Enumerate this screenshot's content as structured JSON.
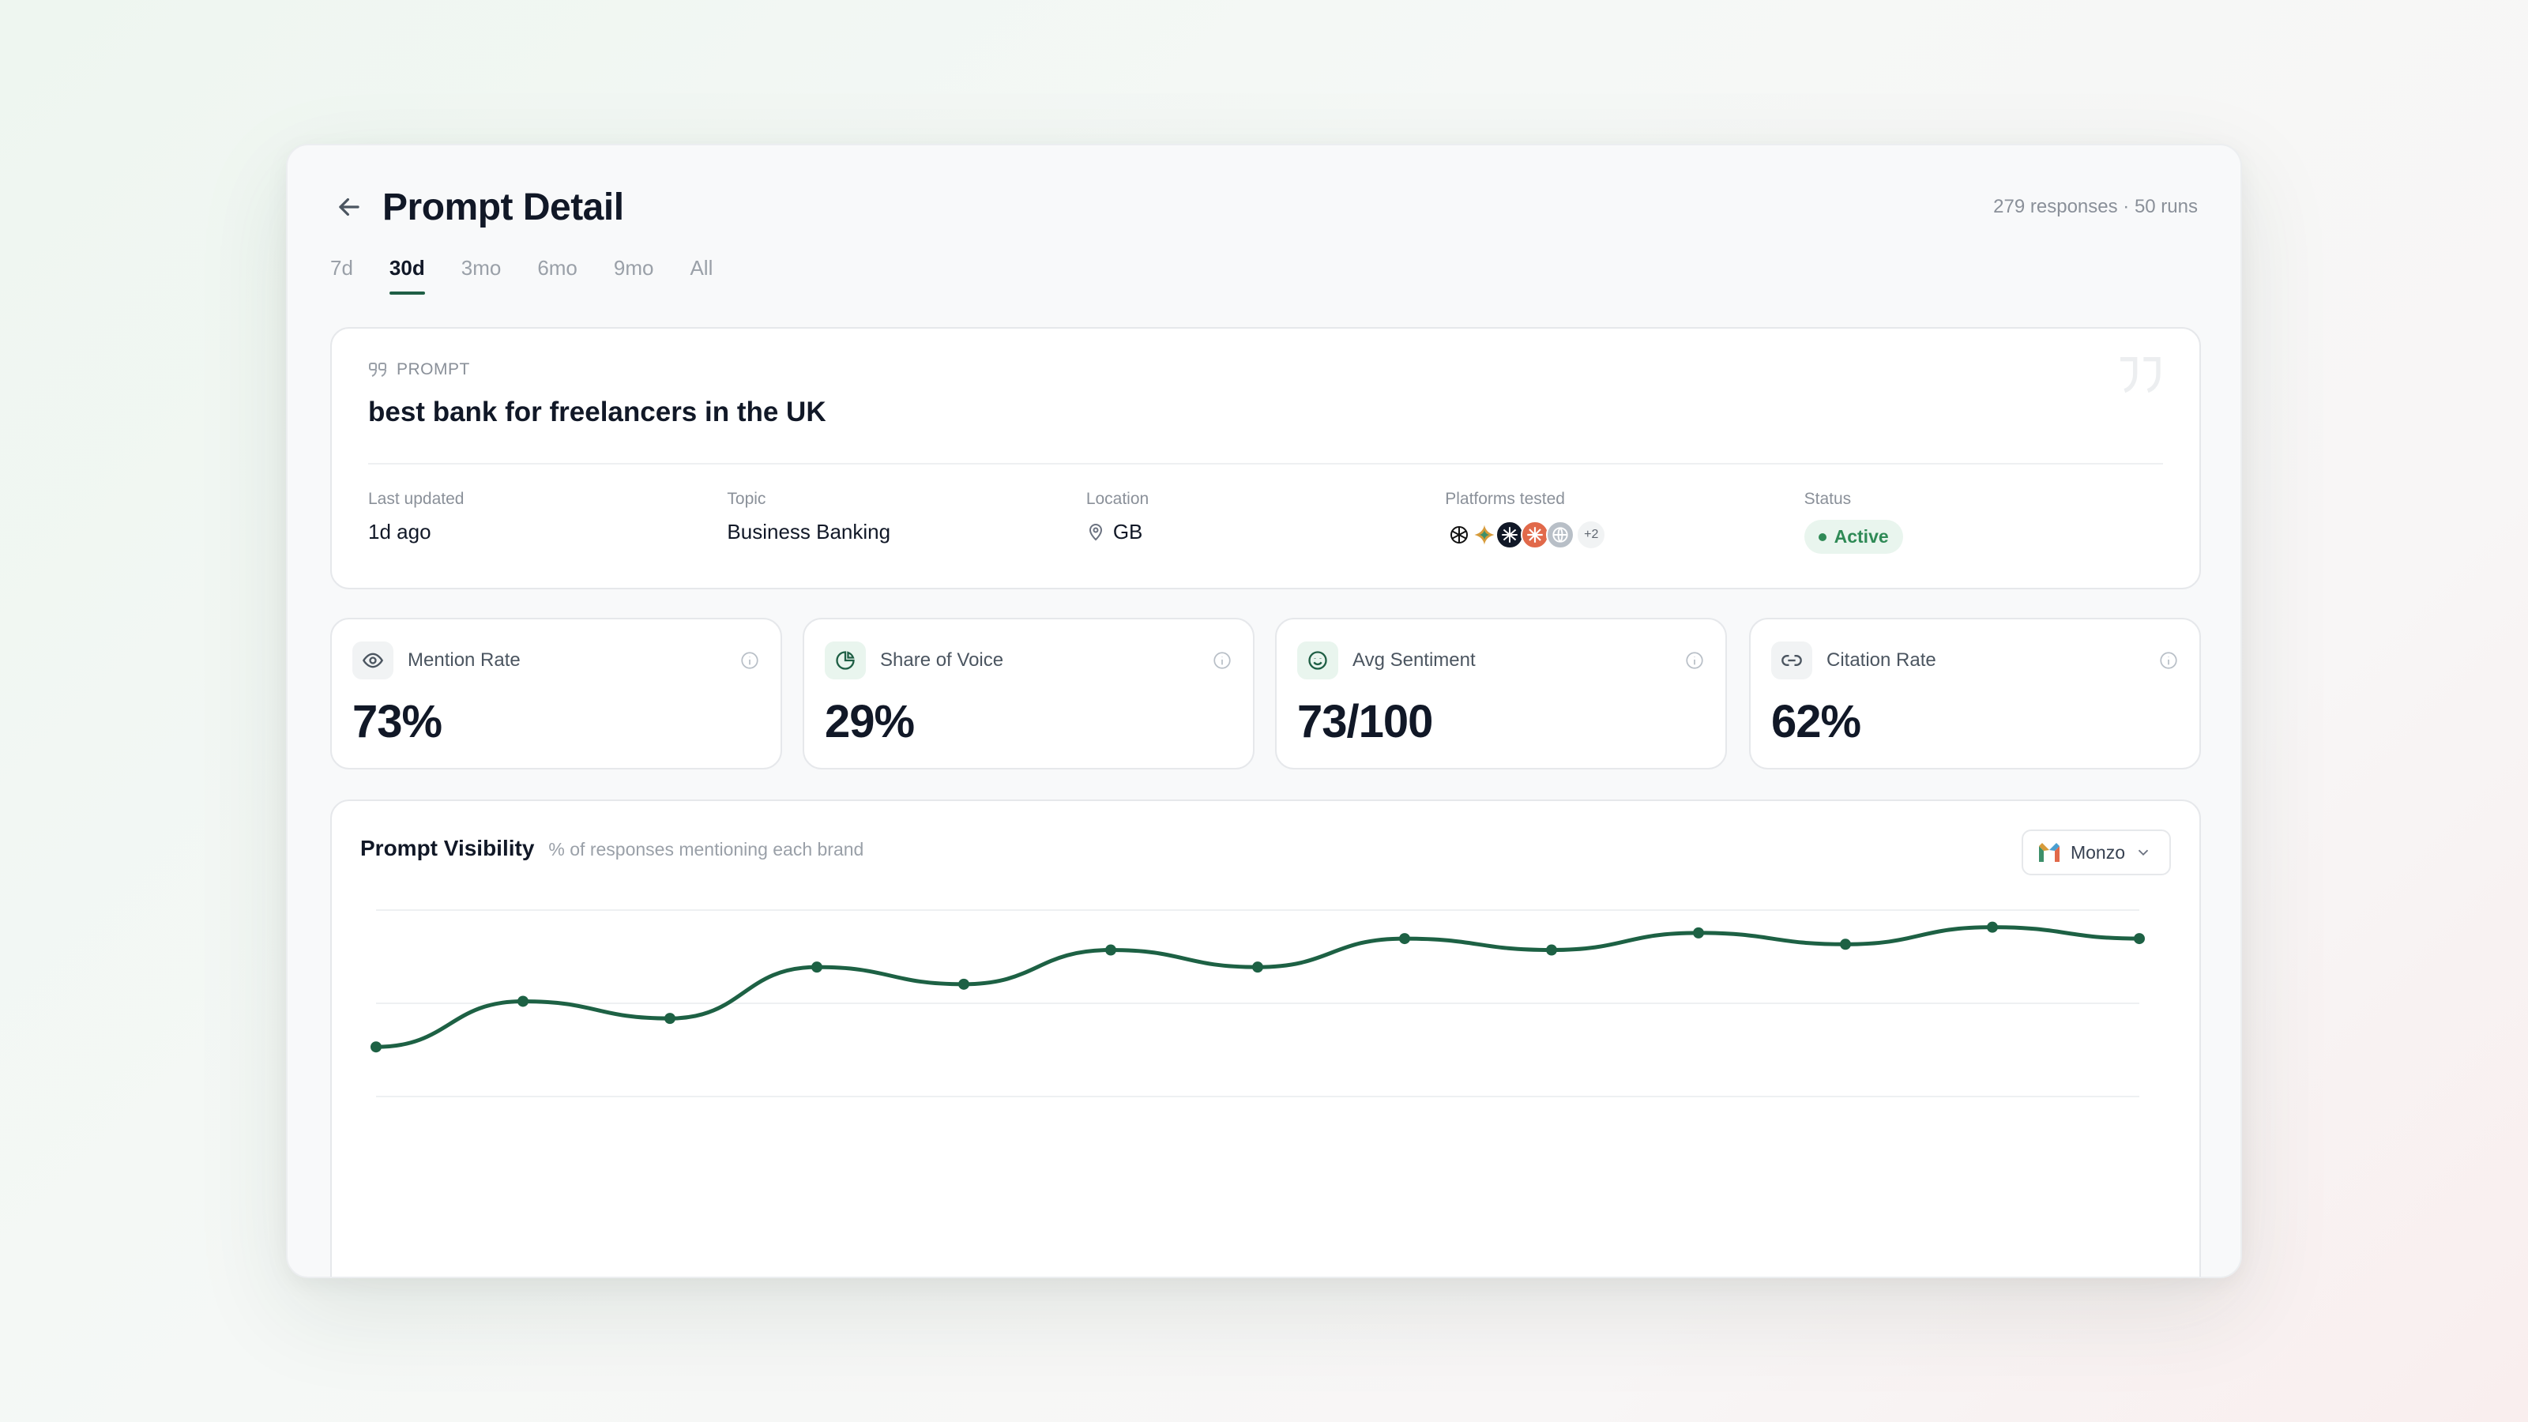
{
  "header": {
    "title": "Prompt Detail",
    "meta": "279 responses · 50 runs"
  },
  "tabs": [
    {
      "label": "7d",
      "active": false
    },
    {
      "label": "30d",
      "active": true
    },
    {
      "label": "3mo",
      "active": false
    },
    {
      "label": "6mo",
      "active": false
    },
    {
      "label": "9mo",
      "active": false
    },
    {
      "label": "All",
      "active": false
    }
  ],
  "prompt": {
    "label": "PROMPT",
    "text": "best bank for freelancers in the UK",
    "meta": {
      "last_updated_label": "Last updated",
      "last_updated_value": "1d ago",
      "topic_label": "Topic",
      "topic_value": "Business Banking",
      "location_label": "Location",
      "location_value": "GB",
      "platforms_label": "Platforms tested",
      "platforms_more": "+2",
      "status_label": "Status",
      "status_value": "Active"
    }
  },
  "metrics": [
    {
      "title": "Mention Rate",
      "value": "73%",
      "icon": "eye-icon"
    },
    {
      "title": "Share of Voice",
      "value": "29%",
      "icon": "pie-chart-icon"
    },
    {
      "title": "Avg Sentiment",
      "value": "73/100",
      "icon": "smile-icon"
    },
    {
      "title": "Citation Rate",
      "value": "62%",
      "icon": "link-icon"
    }
  ],
  "chart_card": {
    "title": "Prompt Visibility",
    "subtitle": "% of responses mentioning each brand",
    "brand_select": "Monzo"
  },
  "colors": {
    "accent": "#1f5f45",
    "line": "#1d6144",
    "status_green": "#2f8a56"
  },
  "chart_data": {
    "type": "line",
    "title": "Prompt Visibility",
    "subtitle": "% of responses mentioning each brand",
    "series": [
      {
        "name": "Monzo",
        "values": [
          66,
          70,
          68.5,
          73,
          71.5,
          74.5,
          73,
          75.5,
          74.5,
          76,
          75,
          76.5,
          75.5
        ]
      }
    ],
    "x": [
      1,
      2,
      3,
      4,
      5,
      6,
      7,
      8,
      9,
      10,
      11,
      12,
      13
    ],
    "ylim": [
      55,
      78
    ],
    "grid": true,
    "legend": "none"
  }
}
